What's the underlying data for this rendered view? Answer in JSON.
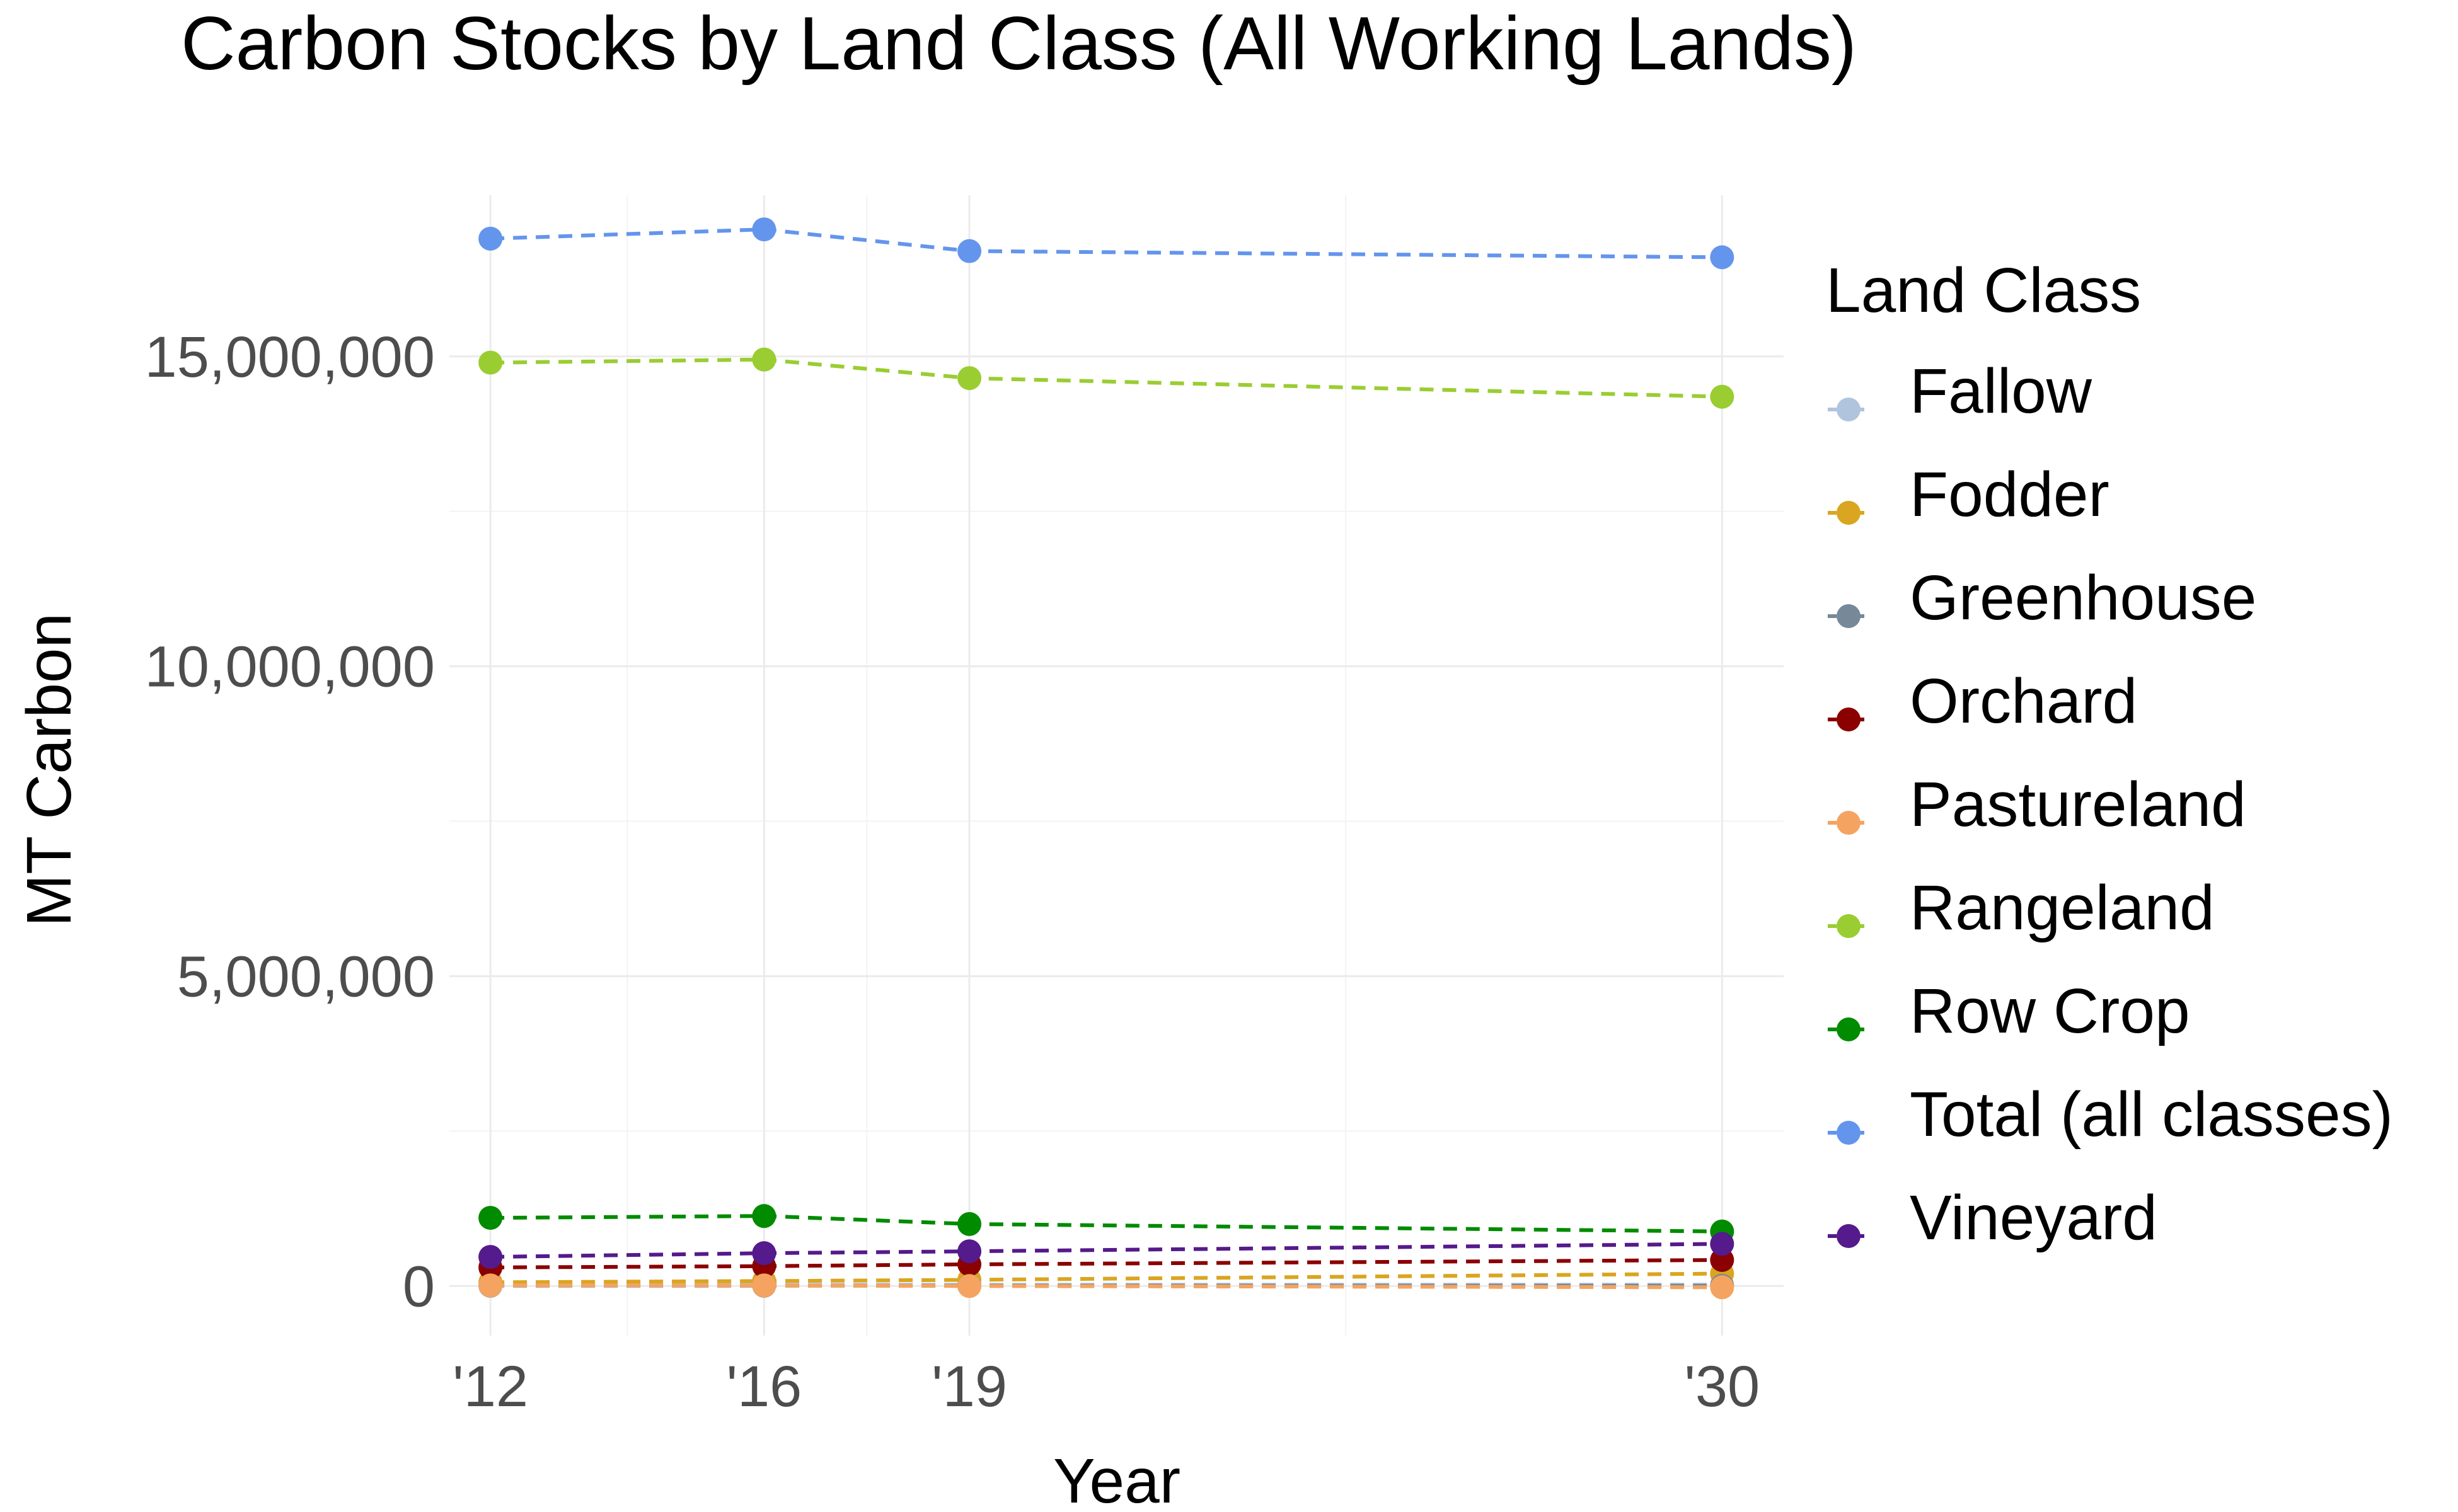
{
  "chart_data": {
    "type": "line",
    "title": "Carbon Stocks by Land Class (All Working Lands)",
    "xlabel": "Year",
    "ylabel": "MT Carbon",
    "x": [
      2012,
      2016,
      2019,
      2030
    ],
    "x_tick_values": [
      2012,
      2016,
      2019,
      2030
    ],
    "x_tick_labels": [
      "'12",
      "'16",
      "'19",
      "'30"
    ],
    "xlim": [
      2011.4,
      2030.9
    ],
    "y_tick_values": [
      0,
      5000000,
      10000000,
      15000000
    ],
    "y_tick_labels": [
      "0",
      "5,000,000",
      "10,000,000",
      "15,000,000"
    ],
    "ylim": [
      -800000,
      17600000
    ],
    "line_style": "dashed",
    "grid": true,
    "legend": {
      "title": "Land Class",
      "position": "right"
    },
    "series": [
      {
        "name": "Fallow",
        "color": "#b0c4de",
        "values": [
          20000,
          20000,
          20000,
          20000
        ]
      },
      {
        "name": "Fodder",
        "color": "#daa520",
        "values": [
          60000,
          80000,
          100000,
          200000
        ]
      },
      {
        "name": "Greenhouse",
        "color": "#778899",
        "values": [
          5000,
          5000,
          5000,
          5000
        ]
      },
      {
        "name": "Orchard",
        "color": "#8b0000",
        "values": [
          300000,
          320000,
          350000,
          420000
        ]
      },
      {
        "name": "Pastureland",
        "color": "#f4a460",
        "values": [
          10000,
          10000,
          0,
          -20000
        ]
      },
      {
        "name": "Rangeland",
        "color": "#9acd32",
        "values": [
          14900000,
          14950000,
          14650000,
          14350000
        ]
      },
      {
        "name": "Row Crop",
        "color": "#008b00",
        "values": [
          1100000,
          1130000,
          1000000,
          880000
        ]
      },
      {
        "name": "Total (all classes)",
        "color": "#6495ed",
        "values": [
          16900000,
          17050000,
          16700000,
          16600000
        ]
      },
      {
        "name": "Vineyard",
        "color": "#551a8b",
        "values": [
          470000,
          530000,
          560000,
          680000
        ]
      }
    ]
  }
}
